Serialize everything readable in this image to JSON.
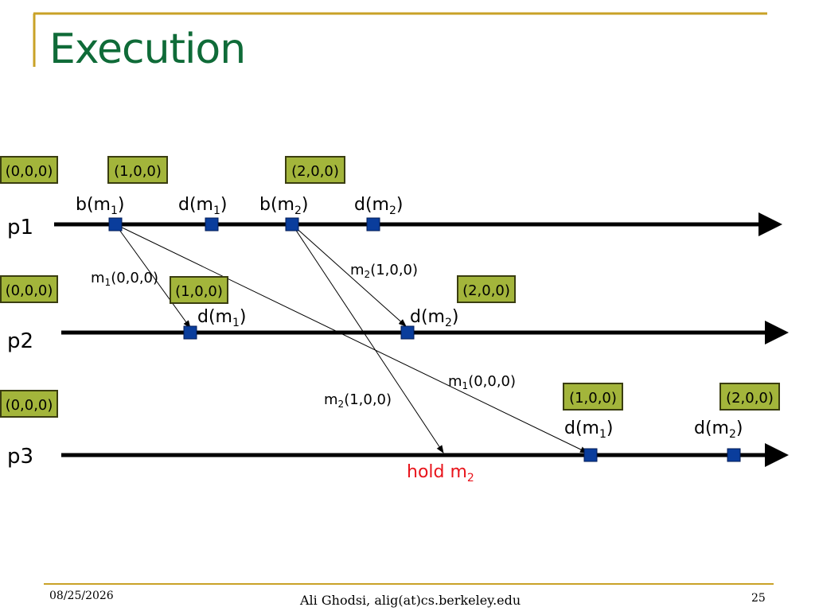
{
  "slide": {
    "title": "Execution",
    "footer_date": "08/25/2026",
    "footer_author": "Ali Ghodsi, alig(at)cs.berkeley.edu",
    "slide_number": "25"
  },
  "colors": {
    "title": "#0f6b38",
    "rule": "#c9a227",
    "timestamp_box_fill": "#a3b53b",
    "timestamp_box_border": "#3a3d10",
    "event_marker": "#0a3d9c",
    "process_line": "#000000",
    "hold_text": "#e8141b"
  },
  "diagram": {
    "processes": [
      {
        "id": "p1",
        "label": "p1"
      },
      {
        "id": "p2",
        "label": "p2"
      },
      {
        "id": "p3",
        "label": "p3"
      }
    ],
    "timestamps": {
      "p1": [
        "(0,0,0)",
        "(1,0,0)",
        "(2,0,0)"
      ],
      "p2": [
        "(0,0,0)",
        "(1,0,0)",
        "(2,0,0)"
      ],
      "p3": [
        "(0,0,0)",
        "(1,0,0)",
        "(2,0,0)"
      ]
    },
    "events": {
      "p1": [
        {
          "name": "b",
          "sub": "1"
        },
        {
          "name": "d",
          "sub": "1"
        },
        {
          "name": "b",
          "sub": "2"
        },
        {
          "name": "d",
          "sub": "2"
        }
      ],
      "p2": [
        {
          "name": "d",
          "sub": "1"
        },
        {
          "name": "d",
          "sub": "2"
        }
      ],
      "p3": [
        {
          "name": "d",
          "sub": "1"
        },
        {
          "name": "d",
          "sub": "2"
        }
      ]
    },
    "messages": [
      {
        "from": "p1 b(m1)",
        "to": "p2",
        "msg": "m",
        "sub": "1",
        "vc": "(0,0,0)"
      },
      {
        "from": "p1 b(m1)",
        "to": "p3",
        "msg": "m",
        "sub": "1",
        "vc": "(0,0,0)"
      },
      {
        "from": "p1 b(m2)",
        "to": "p2",
        "msg": "m",
        "sub": "2",
        "vc": "(1,0,0)"
      },
      {
        "from": "p1 b(m2)",
        "to": "p3",
        "msg": "m",
        "sub": "2",
        "vc": "(1,0,0)"
      }
    ],
    "hold_note": {
      "text": "hold m",
      "sub": "2"
    }
  }
}
